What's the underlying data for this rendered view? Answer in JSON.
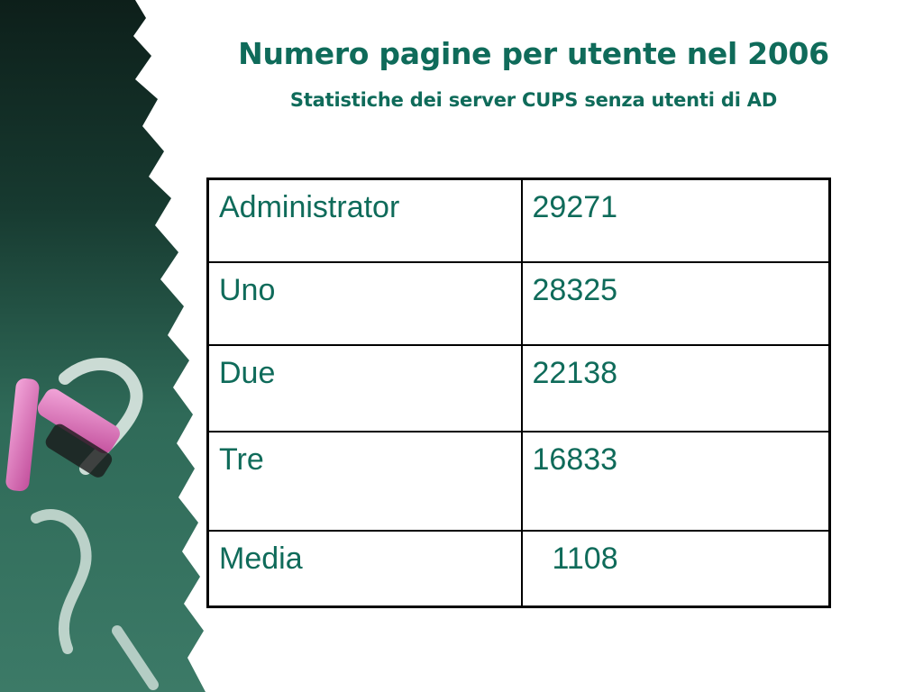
{
  "slide": {
    "title": "Numero pagine per utente nel 2006",
    "subtitle": "Statistiche dei server CUPS senza utenti di AD"
  },
  "table": {
    "rows": [
      {
        "name": "Administrator",
        "value": "29271"
      },
      {
        "name": "Uno",
        "value": "28325"
      },
      {
        "name": "Due",
        "value": "22138"
      },
      {
        "name": "Tre",
        "value": "16833"
      },
      {
        "name": "Media",
        "value": "1108"
      }
    ]
  },
  "colors": {
    "text": "#0f6b5a",
    "chalkboard": "#2f6a58",
    "chalk": "#e57fc4"
  },
  "decoration": {
    "background_icon": "chalkboard-with-chalk-icon"
  }
}
